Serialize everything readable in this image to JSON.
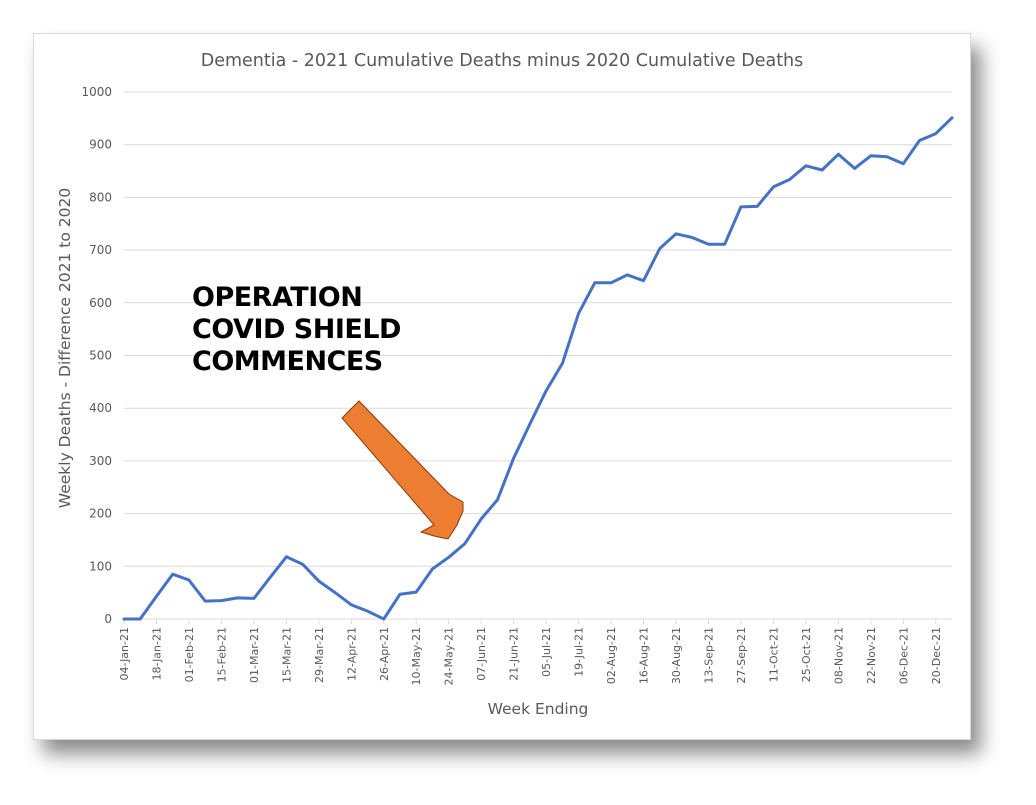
{
  "chart_data": {
    "type": "line",
    "title": "Dementia - 2021 Cumulative Deaths minus 2020 Cumulative Deaths",
    "xlabel": "Week Ending",
    "ylabel": "Weekly Deaths - Difference 2021 to 2020",
    "ylim": [
      0,
      1000
    ],
    "yticks": [
      "0",
      "100",
      "200",
      "300",
      "400",
      "500",
      "600",
      "700",
      "800",
      "900",
      "1000"
    ],
    "grid": true,
    "x_tick_labels": [
      "04-Jan-21",
      "18-Jan-21",
      "01-Feb-21",
      "15-Feb-21",
      "01-Mar-21",
      "15-Mar-21",
      "29-Mar-21",
      "12-Apr-21",
      "26-Apr-21",
      "10-May-21",
      "24-May-21",
      "07-Jun-21",
      "21-Jun-21",
      "05-Jul-21",
      "19-Jul-21",
      "02-Aug-21",
      "16-Aug-21",
      "30-Aug-21",
      "13-Sep-21",
      "27-Sep-21",
      "11-Oct-21",
      "25-Oct-21",
      "08-Nov-21",
      "22-Nov-21",
      "06-Dec-21",
      "20-Dec-21"
    ],
    "series": [
      {
        "name": "Difference",
        "color": "#4472c4",
        "values": [
          0,
          -5,
          43,
          85,
          74,
          34,
          35,
          40,
          39,
          79,
          118,
          104,
          72,
          50,
          27,
          15,
          0,
          47,
          51,
          95,
          117,
          143,
          190,
          226,
          305,
          370,
          433,
          485,
          580,
          638,
          638,
          653,
          642,
          703,
          731,
          724,
          711,
          711,
          782,
          783,
          820,
          834,
          860,
          852,
          882,
          855,
          879,
          877,
          864,
          908,
          921,
          951
        ]
      }
    ],
    "annotation": {
      "lines": [
        "OPERATION",
        "COVID SHIELD",
        "COMMENCES"
      ],
      "arrow_color": "#ed7d31",
      "arrow_outline": "#843c0c"
    }
  }
}
